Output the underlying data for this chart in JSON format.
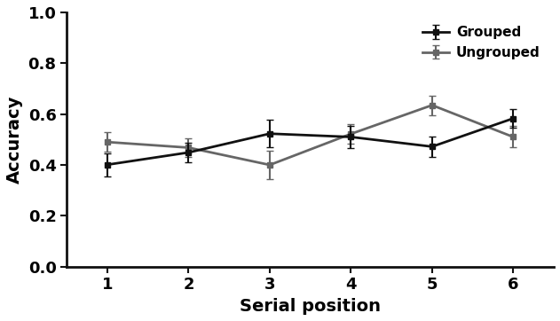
{
  "x": [
    1,
    2,
    3,
    4,
    5,
    6
  ],
  "grouped_means": [
    0.401,
    0.449,
    0.523,
    0.51,
    0.472,
    0.583
  ],
  "grouped_errors": [
    0.045,
    0.038,
    0.055,
    0.045,
    0.04,
    0.038
  ],
  "ungrouped_means": [
    0.49,
    0.468,
    0.4,
    0.522,
    0.635,
    0.51
  ],
  "ungrouped_errors": [
    0.038,
    0.038,
    0.055,
    0.04,
    0.038,
    0.042
  ],
  "grouped_color": "#111111",
  "ungrouped_color": "#666666",
  "xlabel": "Serial position",
  "ylabel": "Accuracy",
  "xlim": [
    0.5,
    6.5
  ],
  "ylim": [
    0.0,
    1.0
  ],
  "yticks": [
    0.0,
    0.2,
    0.4,
    0.6,
    0.8,
    1.0
  ],
  "xticks": [
    1,
    2,
    3,
    4,
    5,
    6
  ],
  "legend_grouped": "Grouped",
  "legend_ungrouped": "Ungrouped",
  "linewidth": 2.0,
  "markersize": 5,
  "capsize": 3,
  "elinewidth": 1.5,
  "tick_label_fontsize": 13,
  "axis_label_fontsize": 14
}
